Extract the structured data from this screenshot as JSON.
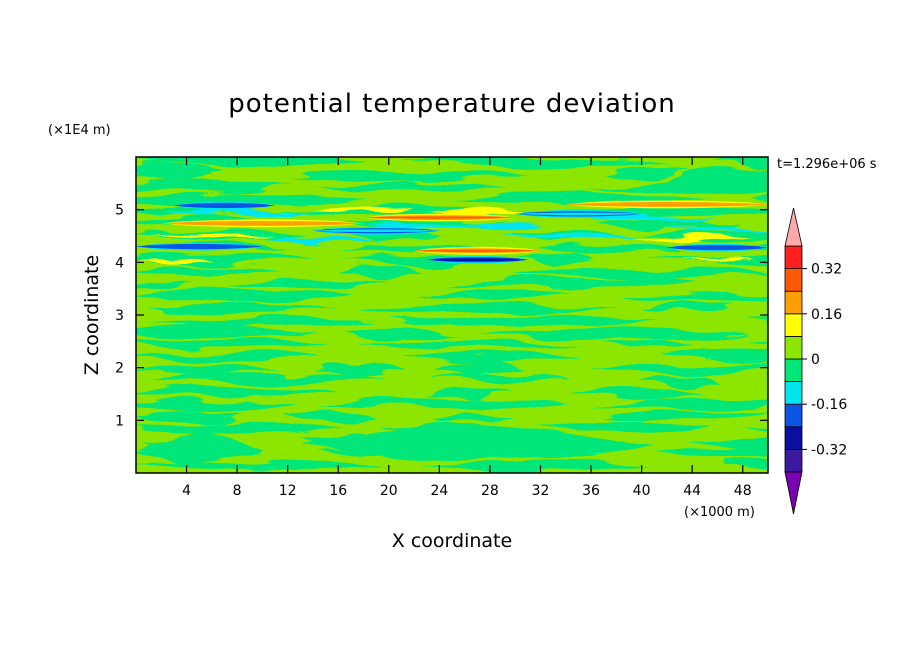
{
  "chart_data": {
    "type": "heatmap",
    "title": "potential temperature deviation",
    "xlabel": "X coordinate",
    "ylabel": "Z coordinate",
    "x_unit": "(×1000 m)",
    "y_unit": "(×1E4 m)",
    "time_label": "t=1.296e+06 s",
    "xlim": [
      0,
      50
    ],
    "ylim": [
      0,
      6
    ],
    "x_ticks": [
      "4",
      "8",
      "12",
      "16",
      "20",
      "24",
      "28",
      "32",
      "36",
      "40",
      "44",
      "48"
    ],
    "y_ticks": [
      "1",
      "2",
      "3",
      "4",
      "5"
    ],
    "colorbar": {
      "levels": [
        -0.4,
        -0.32,
        -0.24,
        -0.16,
        -0.08,
        0,
        0.08,
        0.16,
        0.24,
        0.32,
        0.4
      ],
      "labels": [
        "0.32",
        "0.16",
        "0",
        "-0.16",
        "-0.32"
      ],
      "colors": [
        "#7a00b4",
        "#3c1aa0",
        "#0a0fa0",
        "#0a55e6",
        "#00e6f0",
        "#00e678",
        "#8ce600",
        "#ffff00",
        "#ffa000",
        "#ff5a00",
        "#ff2020",
        "#ffaaaa"
      ]
    },
    "bands": [
      {
        "z": 4.05,
        "x": [
          23,
          31
        ],
        "value": -0.32
      },
      {
        "z": 4.22,
        "x": [
          22,
          32
        ],
        "value": 0.24
      },
      {
        "z": 4.3,
        "x": [
          0,
          10
        ],
        "value": -0.24
      },
      {
        "z": 4.28,
        "x": [
          42,
          50
        ],
        "value": -0.24
      },
      {
        "z": 4.6,
        "x": [
          14,
          24
        ],
        "value": -0.16
      },
      {
        "z": 4.74,
        "x": [
          2,
          18
        ],
        "value": 0.16
      },
      {
        "z": 4.85,
        "x": [
          18,
          30
        ],
        "value": 0.24
      },
      {
        "z": 4.92,
        "x": [
          30,
          40
        ],
        "value": -0.16
      },
      {
        "z": 5.08,
        "x": [
          3,
          11
        ],
        "value": -0.24
      },
      {
        "z": 5.1,
        "x": [
          34,
          50
        ],
        "value": 0.16
      }
    ]
  }
}
